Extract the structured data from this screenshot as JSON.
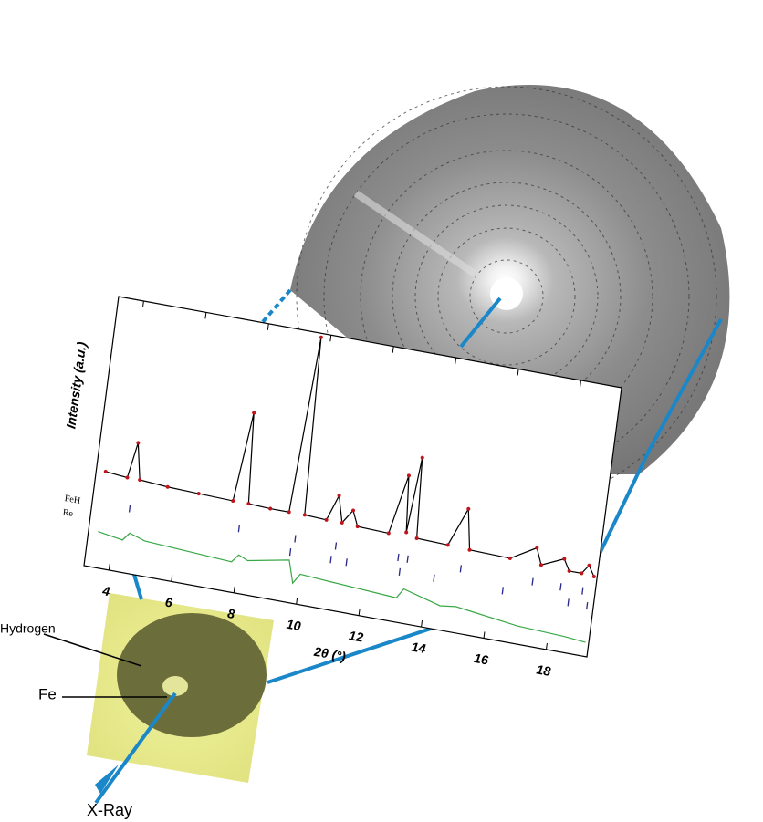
{
  "chart_data": {
    "type": "line",
    "xlabel": "2θ (°)",
    "ylabel": "Intensity (a.u.)",
    "xlim": [
      3.2,
      19.3
    ],
    "xticks": [
      4,
      6,
      8,
      10,
      12,
      14,
      16,
      18
    ],
    "ylim": [
      -35,
      100
    ],
    "series": [
      {
        "color": "#000000",
        "marker_color": "#c0141b",
        "x": [
          3.5,
          4.2,
          4.4,
          4.6,
          5.5,
          6.5,
          7.6,
          7.9,
          8.1,
          8.8,
          9.4,
          9.7,
          9.9,
          10.6,
          10.9,
          11.1,
          11.4,
          11.6,
          12.6,
          13.0,
          13.15,
          13.35,
          13.5,
          14.5,
          15.0,
          15.2,
          16.5,
          17.3,
          17.5,
          18.2,
          18.4,
          18.8,
          19.0,
          19.2
        ],
        "values": [
          13,
          12,
          30,
          12,
          11,
          10.5,
          10,
          55,
          10,
          9.5,
          9.5,
          98,
          9.5,
          9,
          22,
          9,
          16,
          8.5,
          8,
          38,
          10,
          48,
          8,
          7.5,
          27,
          7,
          6.5,
          14,
          6,
          11,
          5.5,
          5.5,
          10,
          5
        ]
      },
      {
        "color": "#3aa847",
        "x": [
          3.5,
          4.3,
          4.5,
          5.0,
          7.8,
          8.0,
          8.3,
          9.6,
          9.8,
          10.0,
          11.0,
          13.1,
          13.3,
          14.5,
          15.0,
          17.0,
          18.5,
          19.2
        ],
        "values": [
          -17,
          -19,
          -15,
          -17.5,
          -20,
          -16,
          -18,
          -14,
          -25,
          -20,
          -21,
          -23,
          -18,
          -23,
          -22,
          -26,
          -27,
          -28
        ]
      }
    ],
    "reflections": [
      {
        "name": "FeH",
        "color": "#2a2a8c",
        "level": -3,
        "positions": [
          4.4,
          7.9,
          9.7,
          11.0,
          13.0,
          13.3,
          15.0,
          17.3,
          18.2,
          18.9
        ]
      },
      {
        "name": "Re",
        "color": "#2a2a8c",
        "level": -10,
        "positions": [
          9.6,
          10.9,
          11.4,
          13.1,
          14.2,
          16.4,
          18.5,
          19.1
        ]
      }
    ]
  },
  "annotations": {
    "hydrogen": "Hydrogen",
    "fe": "Fe",
    "xray": "X-Ray"
  }
}
